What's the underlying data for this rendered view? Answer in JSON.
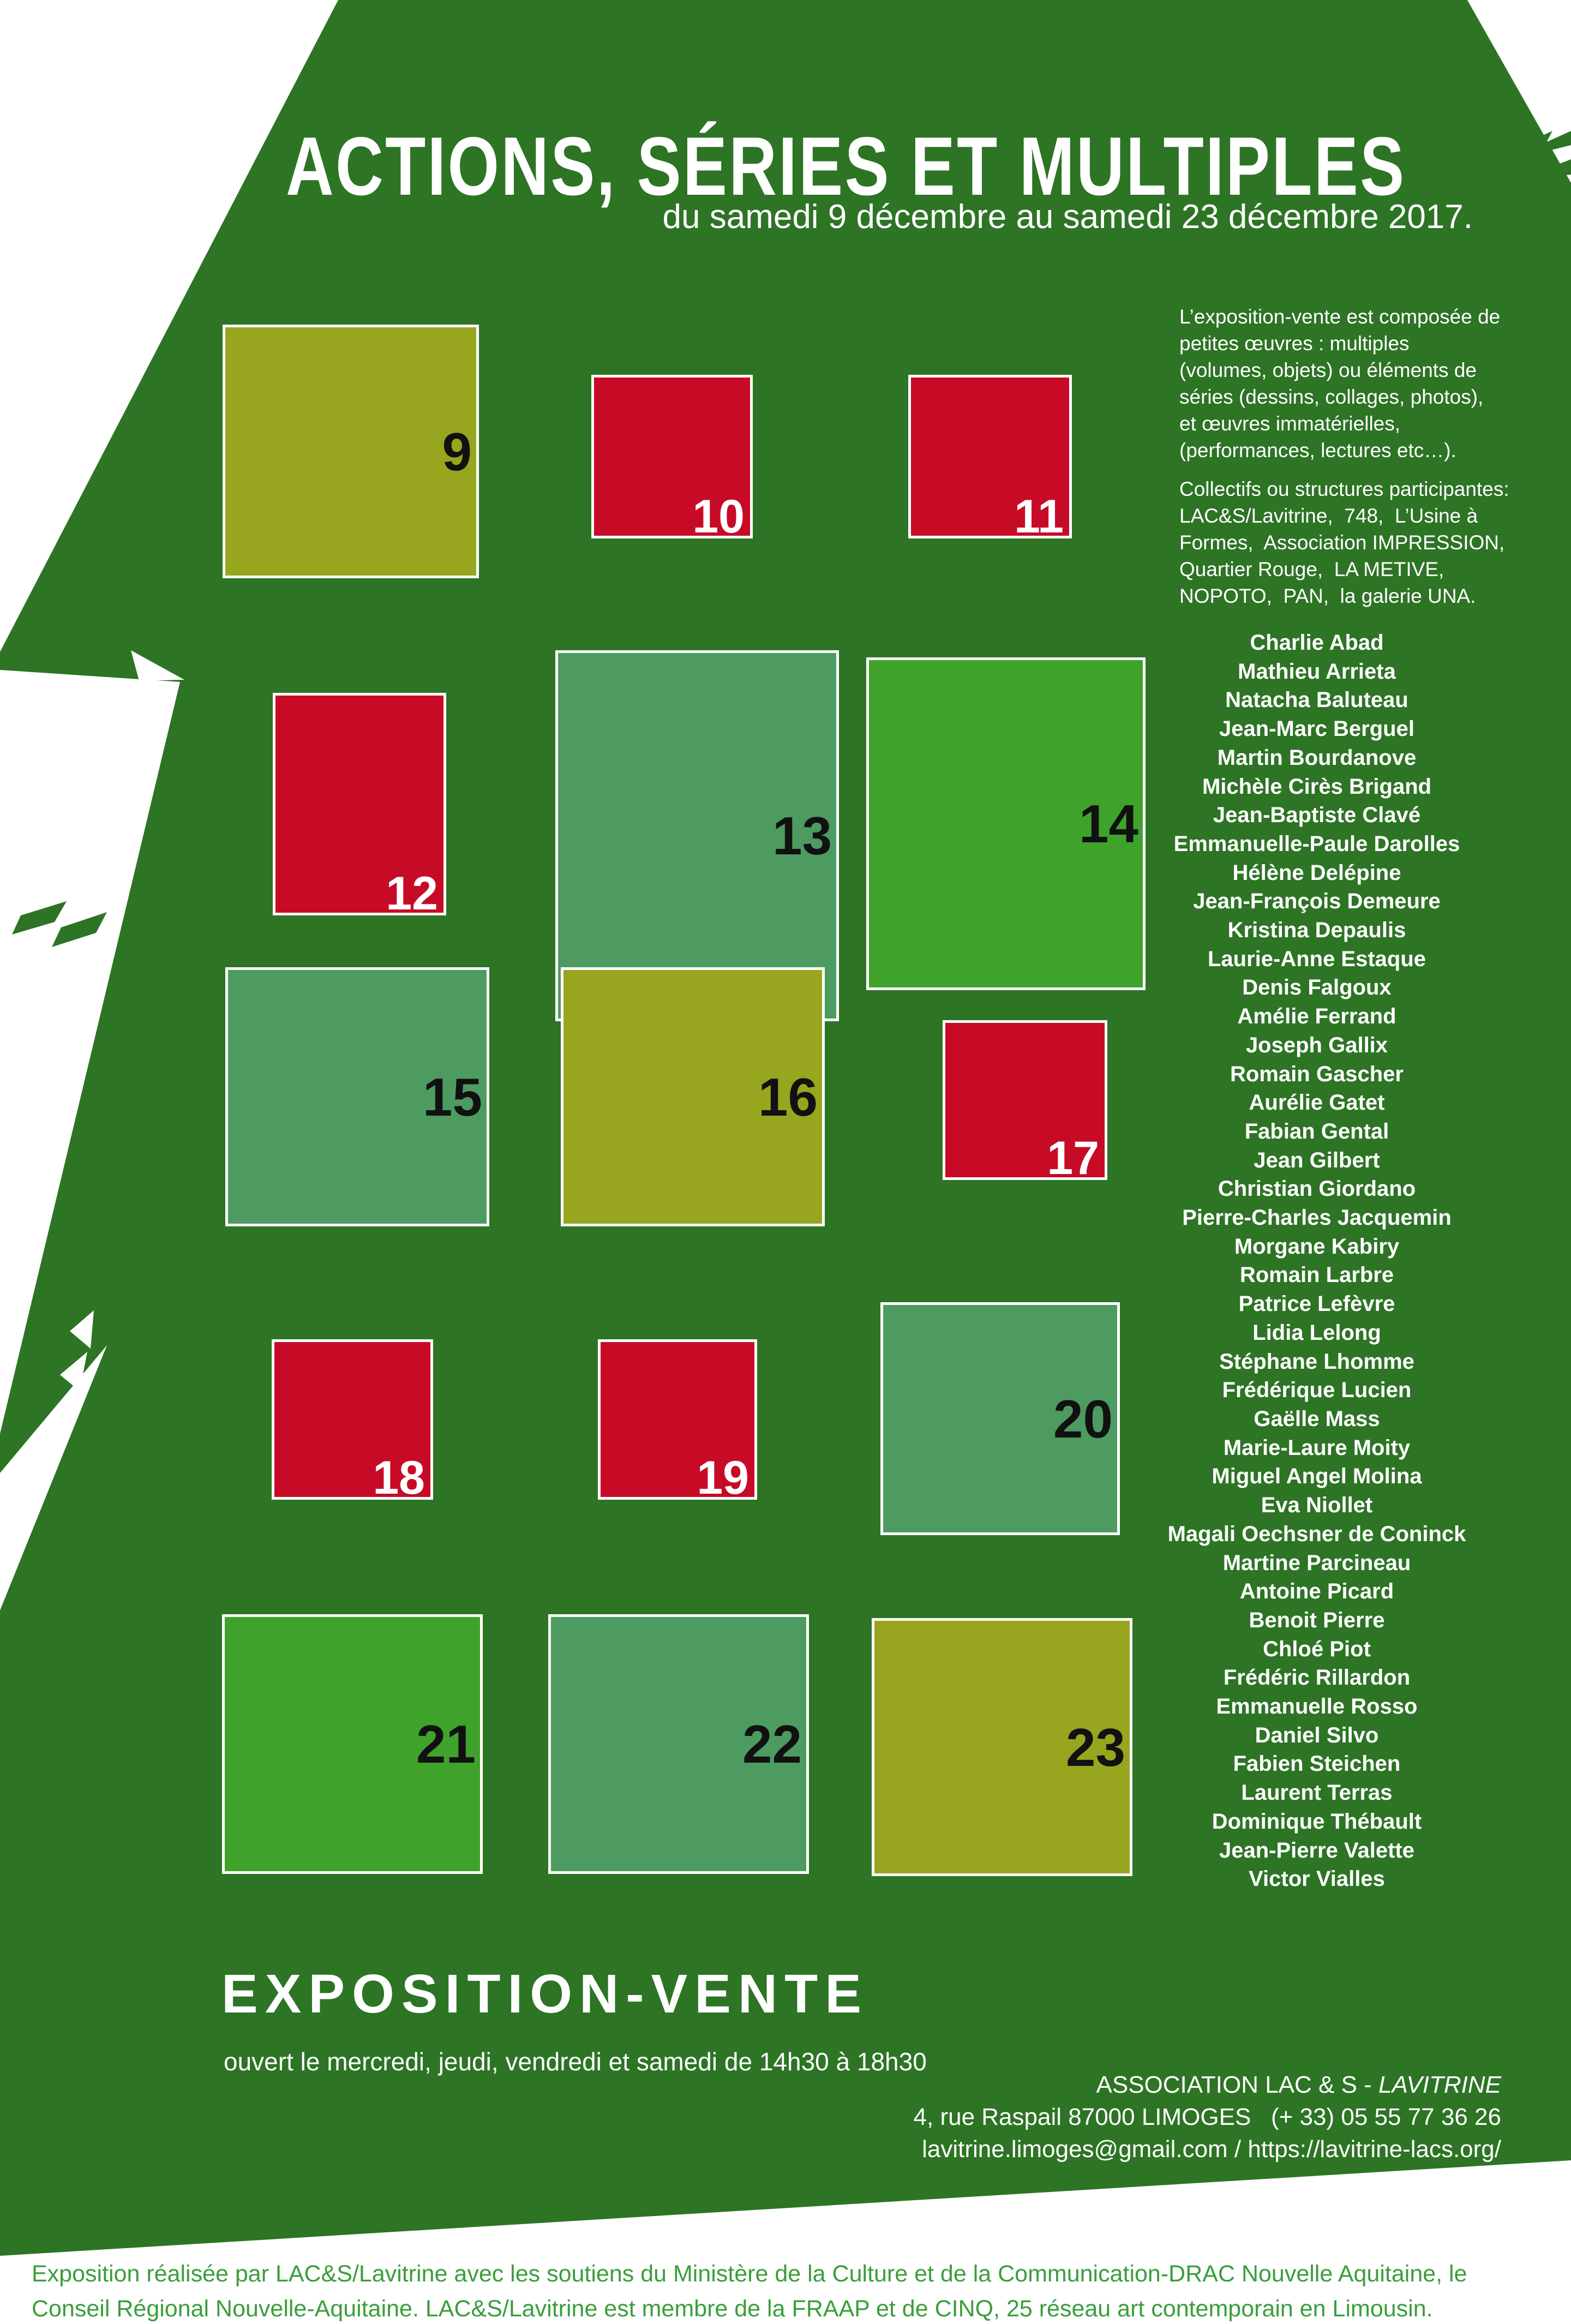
{
  "header": {
    "title": "ACTIONS, SÉRIES ET MULTIPLES",
    "subtitle": "du samedi 9 décembre au samedi 23 décembre 2017."
  },
  "right_col": {
    "intro": "L’exposition-vente est composée de petites œuvres : multiples (volumes, objets) ou éléments de séries (dessins, collages, photos), et œuvres immatérielles, (performances, lectures etc…).",
    "collectives": "Collectifs ou structures participantes: LAC&S/Lavitrine,  748,  L’Usine à Formes,  Association IMPRESSION, Quartier Rouge,  LA METIVE, NOPOTO,  PAN,  la galerie UNA."
  },
  "artists": [
    "Charlie Abad",
    "Mathieu Arrieta",
    "Natacha Baluteau",
    "Jean-Marc Berguel",
    "Martin Bourdanove",
    "Michèle Cirès Brigand",
    "Jean-Baptiste Clavé",
    "Emmanuelle-Paule Darolles",
    "Hélène Delépine",
    "Jean-François Demeure",
    "Kristina Depaulis",
    "Laurie-Anne Estaque",
    "Denis Falgoux",
    "Amélie Ferrand",
    "Joseph Gallix",
    "Romain Gascher",
    "Aurélie Gatet",
    "Fabian Gental",
    "Jean Gilbert",
    "Christian Giordano",
    "Pierre-Charles Jacquemin",
    "Morgane Kabiry",
    "Romain Larbre",
    "Patrice Lefèvre",
    "Lidia Lelong",
    "Stéphane Lhomme",
    "Frédérique Lucien",
    "Gaëlle Mass",
    "Marie-Laure Moity",
    "Miguel Angel Molina",
    "Eva Niollet",
    "Magali Oechsner de Coninck",
    "Martine Parcineau",
    "Antoine Picard",
    "Benoit Pierre",
    "Chloé Piot",
    "Frédéric Rillardon",
    "Emmanuelle Rosso",
    "Daniel Silvo",
    "Fabien Steichen",
    "Laurent Terras",
    "Dominique Thébault",
    "Jean-Pierre Valette",
    "Victor Vialles"
  ],
  "calendar": {
    "squares": [
      {
        "number": "9",
        "color": "olive",
        "number_color": "dark"
      },
      {
        "number": "10",
        "color": "red",
        "number_color": "light"
      },
      {
        "number": "11",
        "color": "red",
        "number_color": "light"
      },
      {
        "number": "12",
        "color": "red",
        "number_color": "light"
      },
      {
        "number": "13",
        "color": "sage",
        "number_color": "dark"
      },
      {
        "number": "14",
        "color": "kelly",
        "number_color": "dark"
      },
      {
        "number": "15",
        "color": "sage",
        "number_color": "dark"
      },
      {
        "number": "16",
        "color": "olive",
        "number_color": "dark"
      },
      {
        "number": "17",
        "color": "red",
        "number_color": "light"
      },
      {
        "number": "18",
        "color": "red",
        "number_color": "light"
      },
      {
        "number": "19",
        "color": "red",
        "number_color": "light"
      },
      {
        "number": "20",
        "color": "sage",
        "number_color": "dark"
      },
      {
        "number": "21",
        "color": "kelly",
        "number_color": "dark"
      },
      {
        "number": "22",
        "color": "sage",
        "number_color": "dark"
      },
      {
        "number": "23",
        "color": "olive",
        "number_color": "dark"
      }
    ]
  },
  "exposition": {
    "heading": "EXPOSITION-VENTE",
    "hours": "ouvert le mercredi, jeudi, vendredi et samedi de 14h30 à 18h30"
  },
  "association": {
    "name_regular": "ASSOCIATION LAC & S - ",
    "name_italic": "LAVITRINE",
    "address": "4, rue Raspail 87000 LIMOGES   (+ 33) 05 55 77 36 26",
    "contact": "lavitrine.limoges@gmail.com / https://lavitrine-lacs.org/"
  },
  "footer": {
    "text": "Exposition réalisée par LAC&S/Lavitrine avec les soutiens du Ministère de la Culture et de la Communication-DRAC Nouvelle Aquitaine, le Conseil Régional Nouvelle-Aquitaine.  LAC&S/Lavitrine est membre de la FRAAP et de CINQ, 25 réseau art contemporain en Limousin."
  },
  "colors": {
    "tree_green": "#2d7425",
    "olive_square": "#97a51f",
    "red_square": "#c70b27",
    "sage_square": "#4d9b60",
    "kelly_square": "#3fa32b",
    "footer_green": "#3a9e3c",
    "text_white": "#ffffff",
    "number_dark": "#111111"
  }
}
